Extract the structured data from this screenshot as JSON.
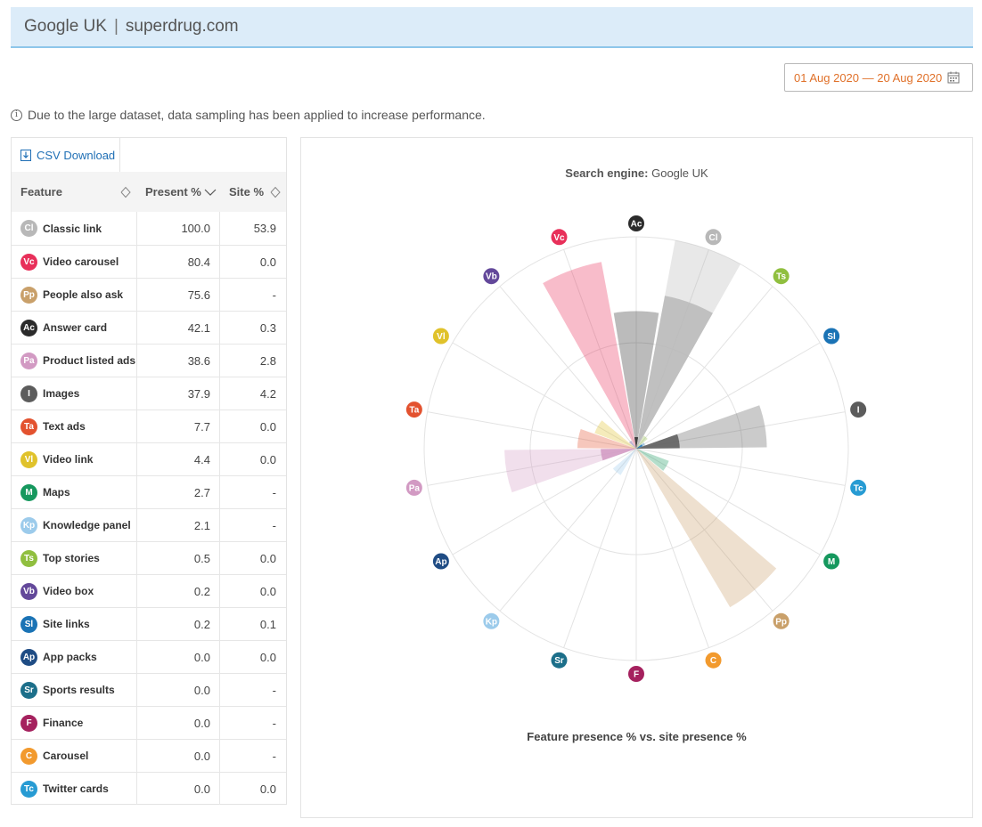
{
  "header": {
    "engine": "Google UK",
    "separator": "|",
    "site": "superdrug.com"
  },
  "date_range": "01 Aug 2020 — 20 Aug 2020",
  "notice": "Due to the large dataset, data sampling has been applied to increase performance.",
  "csv_download": "CSV Download",
  "table": {
    "columns": [
      "Feature",
      "Present %",
      "Site %"
    ],
    "rows": [
      {
        "abbr": "Cl",
        "color": "#b8b8b8",
        "feature": "Classic link",
        "present": "100.0",
        "site": "53.9"
      },
      {
        "abbr": "Vc",
        "color": "#e8305a",
        "feature": "Video carousel",
        "present": "80.4",
        "site": "0.0"
      },
      {
        "abbr": "Pp",
        "color": "#c9a06a",
        "feature": "People also ask",
        "present": "75.6",
        "site": "-"
      },
      {
        "abbr": "Ac",
        "color": "#2b2b2b",
        "feature": "Answer card",
        "present": "42.1",
        "site": "0.3"
      },
      {
        "abbr": "Pa",
        "color": "#d29ac3",
        "feature": "Product listed ads",
        "present": "38.6",
        "site": "2.8"
      },
      {
        "abbr": "I",
        "color": "#5c5c5c",
        "feature": "Images",
        "present": "37.9",
        "site": "4.2"
      },
      {
        "abbr": "Ta",
        "color": "#e3522f",
        "feature": "Text ads",
        "present": "7.7",
        "site": "0.0"
      },
      {
        "abbr": "Vl",
        "color": "#e0c22b",
        "feature": "Video link",
        "present": "4.4",
        "site": "0.0"
      },
      {
        "abbr": "M",
        "color": "#16985e",
        "feature": "Maps",
        "present": "2.7",
        "site": "-"
      },
      {
        "abbr": "Kp",
        "color": "#9ccbeb",
        "feature": "Knowledge panel",
        "present": "2.1",
        "site": "-"
      },
      {
        "abbr": "Ts",
        "color": "#90bf3f",
        "feature": "Top stories",
        "present": "0.5",
        "site": "0.0"
      },
      {
        "abbr": "Vb",
        "color": "#63489a",
        "feature": "Video box",
        "present": "0.2",
        "site": "0.0"
      },
      {
        "abbr": "Sl",
        "color": "#1a73b5",
        "feature": "Site links",
        "present": "0.2",
        "site": "0.1"
      },
      {
        "abbr": "Ap",
        "color": "#1f4c84",
        "feature": "App packs",
        "present": "0.0",
        "site": "0.0"
      },
      {
        "abbr": "Sr",
        "color": "#1c6f8a",
        "feature": "Sports results",
        "present": "0.0",
        "site": "-"
      },
      {
        "abbr": "F",
        "color": "#a5215e",
        "feature": "Finance",
        "present": "0.0",
        "site": "-"
      },
      {
        "abbr": "C",
        "color": "#f29a2e",
        "feature": "Carousel",
        "present": "0.0",
        "site": "-"
      },
      {
        "abbr": "Tc",
        "color": "#279bd3",
        "feature": "Twitter cards",
        "present": "0.0",
        "site": "0.0"
      }
    ]
  },
  "chart": {
    "title_label": "Search engine:",
    "title_value": "Google UK",
    "caption": "Feature presence % vs. site presence %"
  },
  "chart_data": {
    "type": "polar-area",
    "title": "Search engine: Google UK",
    "xlabel": "Feature presence % vs. site presence %",
    "rlim": [
      0,
      100
    ],
    "categories": [
      "Ac",
      "Cl",
      "Ts",
      "Sl",
      "I",
      "Tc",
      "M",
      "Pp",
      "C",
      "F",
      "Sr",
      "Kp",
      "Ap",
      "Pa",
      "Ta",
      "Vl",
      "Vb",
      "Vc"
    ],
    "colors": [
      "#2b2b2b",
      "#b8b8b8",
      "#90bf3f",
      "#1a73b5",
      "#5c5c5c",
      "#279bd3",
      "#16985e",
      "#c9a06a",
      "#f29a2e",
      "#a5215e",
      "#1c6f8a",
      "#9ccbeb",
      "#1f4c84",
      "#d29ac3",
      "#e3522f",
      "#e0c22b",
      "#63489a",
      "#e8305a"
    ],
    "series": [
      {
        "name": "Present %",
        "values": [
          42.1,
          100.0,
          0.5,
          0.2,
          37.9,
          0.0,
          2.7,
          75.6,
          0.0,
          0.0,
          0.0,
          2.1,
          0.0,
          38.6,
          7.7,
          4.4,
          0.2,
          80.4
        ]
      },
      {
        "name": "Site %",
        "values": [
          0.3,
          53.9,
          0.0,
          0.1,
          4.2,
          0.0,
          0,
          0,
          0,
          0,
          0,
          0,
          0.0,
          2.8,
          0.0,
          0.0,
          0.0,
          0.0
        ]
      }
    ]
  }
}
